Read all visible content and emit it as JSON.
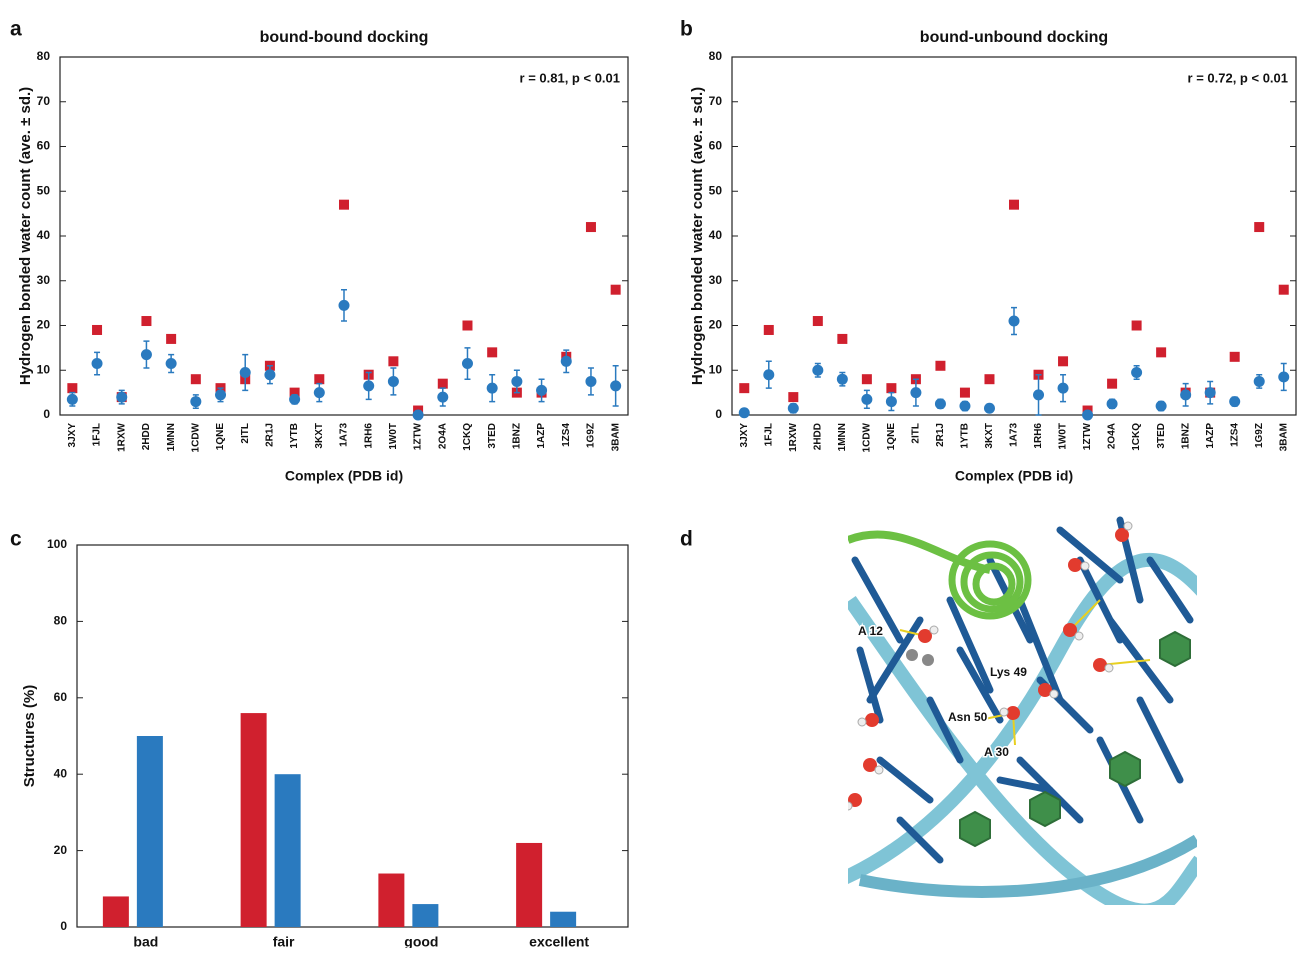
{
  "chart_data": [
    {
      "type": "scatter",
      "panel": "a",
      "title": "bound-bound docking",
      "annotation": "r = 0.81, p < 0.01",
      "x_label": "Complex (PDB id)",
      "y_label": "Hydrogen bonded water count (ave. ± sd.)",
      "categories": [
        "3JXY",
        "1FJL",
        "1RXW",
        "2HDD",
        "1MNN",
        "1CDW",
        "1QNE",
        "2ITL",
        "2R1J",
        "1YTB",
        "3KXT",
        "1A73",
        "1RH6",
        "1W0T",
        "1ZTW",
        "2O4A",
        "1CKQ",
        "3TED",
        "1BNZ",
        "1AZP",
        "1ZS4",
        "1G9Z",
        "3BAM"
      ],
      "series": [
        {
          "color": "#d0202e",
          "marker": "square",
          "values": [
            6,
            19,
            4,
            21,
            17,
            8,
            6,
            8,
            11,
            5,
            8,
            47,
            9,
            12,
            1,
            7,
            20,
            14,
            5,
            5,
            13,
            42,
            28
          ]
        },
        {
          "color": "#2a7abf",
          "marker": "circle",
          "values": [
            3.5,
            11.5,
            4,
            13.5,
            11.5,
            3,
            4.5,
            9.5,
            9,
            3.5,
            5,
            24.5,
            6.5,
            7.5,
            0,
            4,
            11.5,
            6,
            7.5,
            5.5,
            12,
            7.5,
            6.5
          ],
          "errors": [
            1.5,
            2.5,
            1.5,
            3,
            2,
            1.5,
            1.5,
            4,
            2,
            1,
            2,
            3.5,
            3,
            3,
            0.5,
            2,
            3.5,
            3,
            2.5,
            2.5,
            2.5,
            3,
            4.5
          ]
        }
      ],
      "ylim": [
        0,
        80
      ],
      "yticks": [
        0,
        10,
        20,
        30,
        40,
        50,
        60,
        70,
        80
      ]
    },
    {
      "type": "scatter",
      "panel": "b",
      "title": "bound-unbound docking",
      "annotation": "r = 0.72, p < 0.01",
      "x_label": "Complex (PDB id)",
      "y_label": "Hydrogen bonded water count (ave. ± sd.)",
      "categories": [
        "3JXY",
        "1FJL",
        "1RXW",
        "2HDD",
        "1MNN",
        "1CDW",
        "1QNE",
        "2ITL",
        "2R1J",
        "1YTB",
        "3KXT",
        "1A73",
        "1RH6",
        "1W0T",
        "1ZTW",
        "2O4A",
        "1CKQ",
        "3TED",
        "1BNZ",
        "1AZP",
        "1ZS4",
        "1G9Z",
        "3BAM"
      ],
      "series": [
        {
          "color": "#d0202e",
          "marker": "square",
          "values": [
            6,
            19,
            4,
            21,
            17,
            8,
            6,
            8,
            11,
            5,
            8,
            47,
            9,
            12,
            1,
            7,
            20,
            14,
            5,
            5,
            13,
            42,
            28
          ]
        },
        {
          "color": "#2a7abf",
          "marker": "circle",
          "values": [
            0.5,
            9,
            1.5,
            10,
            8,
            3.5,
            3,
            5,
            2.5,
            2,
            1.5,
            21,
            4.5,
            6,
            0,
            2.5,
            9.5,
            2,
            4.5,
            5,
            3,
            7.5,
            8.5
          ],
          "errors": [
            0.5,
            3,
            1,
            1.5,
            1.5,
            2,
            2,
            3,
            1,
            1,
            0.5,
            3,
            4.5,
            3,
            0.3,
            1,
            1.5,
            1,
            2.5,
            2.5,
            1,
            1.5,
            3
          ]
        }
      ],
      "ylim": [
        0,
        80
      ],
      "yticks": [
        0,
        10,
        20,
        30,
        40,
        50,
        60,
        70,
        80
      ]
    },
    {
      "type": "bar",
      "panel": "c",
      "y_label": "Structures (%)",
      "categories": [
        "bad",
        "fair",
        "good",
        "excellent"
      ],
      "series": [
        {
          "color": "#d0202e",
          "values": [
            8,
            56,
            14,
            22
          ]
        },
        {
          "color": "#2a7abf",
          "values": [
            50,
            40,
            6,
            4
          ]
        }
      ],
      "ylim": [
        0,
        100
      ],
      "yticks": [
        0,
        20,
        40,
        60,
        80,
        100
      ]
    }
  ],
  "image": {
    "panel": "d",
    "labels": [
      "A 12",
      "Lys 49",
      "Asn 50",
      "A 30"
    ]
  }
}
